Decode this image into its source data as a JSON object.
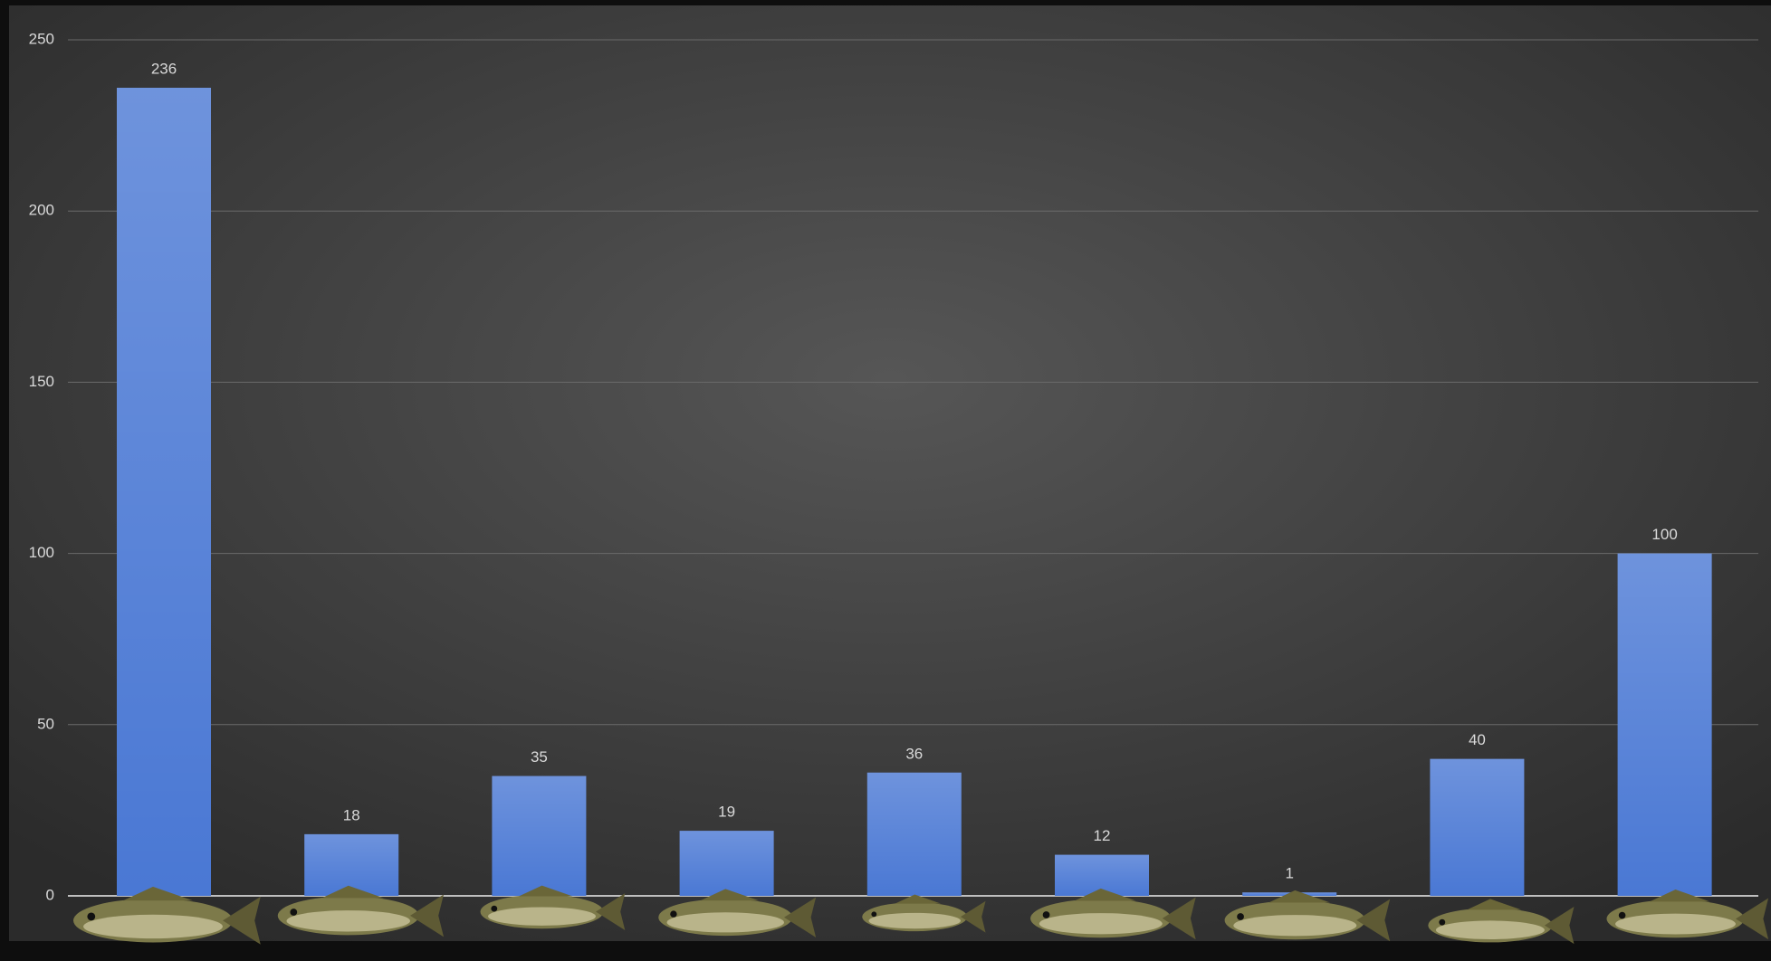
{
  "chart_data": {
    "type": "bar",
    "categories": [
      null,
      null,
      null,
      null,
      null,
      null,
      null,
      null,
      null
    ],
    "values": [
      236,
      18,
      35,
      19,
      36,
      12,
      1,
      40,
      100
    ],
    "color": "#4a78d4",
    "ylim": [
      0,
      250
    ],
    "yticks": [
      0,
      50,
      100,
      150,
      200,
      250
    ],
    "grid": true
  }
}
